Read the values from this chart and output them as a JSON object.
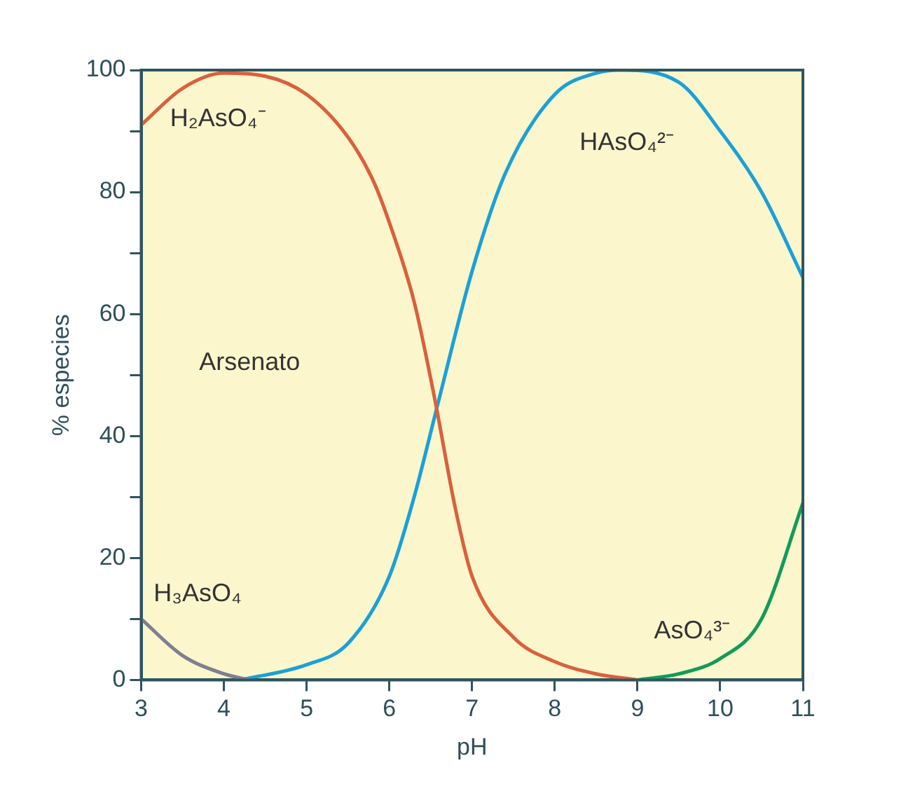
{
  "chart_data": {
    "type": "line",
    "xlabel": "pH",
    "ylabel": "% especies",
    "xlim": [
      3,
      11
    ],
    "xticks": [
      3,
      4,
      5,
      6,
      7,
      8,
      9,
      10,
      11
    ],
    "ylim": [
      0,
      100
    ],
    "yticks": [
      0,
      {
        "value": 10,
        "label": null
      },
      20,
      {
        "value": 30,
        "label": null
      },
      40,
      {
        "value": 50,
        "label": null
      },
      60,
      {
        "value": 70,
        "label": null
      },
      80,
      {
        "value": 90,
        "label": null
      },
      100
    ],
    "grid": false,
    "legend": false,
    "marker": "none",
    "line_style": "solid",
    "annotations": [
      "Arsenato"
    ],
    "series": [
      {
        "name": "H₃AsO₄",
        "color": "#7f7f8f",
        "x": [
          3,
          3.5,
          4,
          4.3
        ],
        "values": [
          10,
          4,
          1,
          0
        ]
      },
      {
        "name": "H₂AsO₄⁻",
        "color": "#d9603e",
        "x": [
          3,
          3.5,
          4,
          4.5,
          5,
          5.5,
          5.8,
          6,
          6.3,
          6.55,
          6.8,
          7,
          7.5,
          8,
          8.5,
          9
        ],
        "values": [
          91,
          97,
          99.5,
          99,
          96,
          89,
          82,
          75,
          62,
          46,
          28,
          17,
          7,
          3,
          1,
          0
        ]
      },
      {
        "name": "HAsO₄²⁻",
        "color": "#1ba0d8",
        "x": [
          4.2,
          5,
          5.5,
          6,
          6.3,
          6.6,
          7,
          7.4,
          8,
          8.5,
          8.8,
          9.5,
          10,
          10.5,
          11
        ],
        "values": [
          0,
          2.5,
          6,
          17,
          30,
          46,
          67,
          83,
          96,
          99.5,
          100,
          98,
          90,
          80,
          66
        ]
      },
      {
        "name": "AsO₄³⁻",
        "color": "#139a5a",
        "x": [
          9,
          9.5,
          10,
          10.5,
          11
        ],
        "values": [
          0,
          1,
          3.5,
          10,
          29
        ]
      }
    ]
  }
}
